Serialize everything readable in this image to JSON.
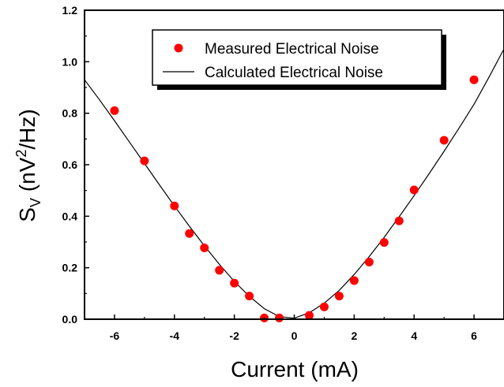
{
  "chart_data": {
    "type": "scatter",
    "xlabel": "Current (mA)",
    "ylabel_main": "S",
    "ylabel_sub": "V",
    "ylabel_rest_a": " (nV",
    "ylabel_sup": "2",
    "ylabel_rest_b": "/Hz)",
    "xlim": [
      -7,
      7
    ],
    "ylim": [
      0,
      1.2
    ],
    "xticks": [
      -6,
      -4,
      -2,
      0,
      2,
      4,
      6
    ],
    "xtick_labels": [
      "-6",
      "-4",
      "-2",
      "0",
      "2",
      "4",
      "6"
    ],
    "yticks": [
      0.0,
      0.2,
      0.4,
      0.6,
      0.8,
      1.0,
      1.2
    ],
    "ytick_labels": [
      "0.0",
      "0.2",
      "0.4",
      "0.6",
      "0.8",
      "1.0",
      "1.2"
    ],
    "legend": {
      "position": "top-center",
      "measured_label": "Measured Electrical Noise",
      "calculated_label": "Calculated Electrical Noise"
    },
    "series": [
      {
        "name": "Measured Electrical Noise",
        "kind": "points",
        "color": "#ff0000",
        "x": [
          -6,
          -5,
          -4,
          -3.5,
          -3,
          -2.5,
          -2,
          -1.5,
          -1,
          -0.5,
          0.5,
          1,
          1.5,
          2,
          2.5,
          3,
          3.5,
          4,
          5,
          6
        ],
        "y": [
          0.81,
          0.615,
          0.44,
          0.333,
          0.277,
          0.19,
          0.14,
          0.09,
          0.005,
          0.005,
          0.015,
          0.048,
          0.09,
          0.15,
          0.222,
          0.298,
          0.382,
          0.502,
          0.695,
          0.93
        ]
      },
      {
        "name": "Calculated Electrical Noise",
        "kind": "line",
        "color": "#000000",
        "x": [
          -7,
          -6.5,
          -6,
          -5.5,
          -5,
          -4.5,
          -4,
          -3.5,
          -3,
          -2.5,
          -2,
          -1.5,
          -1,
          -0.5,
          0,
          0.5,
          1,
          1.5,
          2,
          2.5,
          3,
          3.5,
          4,
          4.5,
          5,
          5.5,
          6,
          6.5,
          7
        ],
        "y": [
          0.93,
          0.852,
          0.771,
          0.688,
          0.605,
          0.522,
          0.44,
          0.361,
          0.285,
          0.213,
          0.147,
          0.089,
          0.041,
          0.01,
          0.004,
          0.025,
          0.062,
          0.112,
          0.174,
          0.243,
          0.318,
          0.398,
          0.48,
          0.565,
          0.652,
          0.742,
          0.835,
          0.94,
          1.05
        ]
      }
    ]
  }
}
